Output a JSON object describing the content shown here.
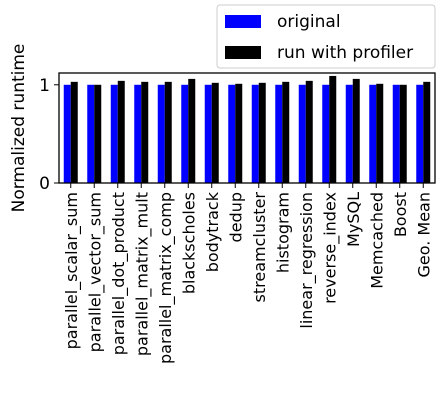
{
  "chart_data": {
    "type": "bar",
    "categories": [
      "parallel_scalar_sum",
      "parallel_vector_sum",
      "parallel_dot_product",
      "parallel_matrix_mult",
      "parallel_matrix_comp",
      "blackscholes",
      "bodytrack",
      "dedup",
      "streamcluster",
      "histogram",
      "linear_regression",
      "reverse_index",
      "MySQL",
      "Memcached",
      "Boost",
      "Geo. Mean"
    ],
    "series": [
      {
        "name": "original",
        "color": "#0000ff",
        "values": [
          1.0,
          1.0,
          1.0,
          1.0,
          1.0,
          1.0,
          1.0,
          1.0,
          1.0,
          1.0,
          1.0,
          1.0,
          1.0,
          1.0,
          1.0,
          1.0
        ]
      },
      {
        "name": "run with profiler",
        "color": "#000000",
        "values": [
          1.03,
          1.0,
          1.04,
          1.03,
          1.03,
          1.06,
          1.02,
          1.01,
          1.02,
          1.03,
          1.04,
          1.09,
          1.06,
          1.01,
          1.0,
          1.03
        ]
      }
    ],
    "xlabel": "",
    "ylabel": "Normalized runtime",
    "yticks": [
      0,
      1
    ],
    "ylim": [
      0,
      1.12
    ],
    "grid": false,
    "legend_position": "top-right, above plot"
  }
}
